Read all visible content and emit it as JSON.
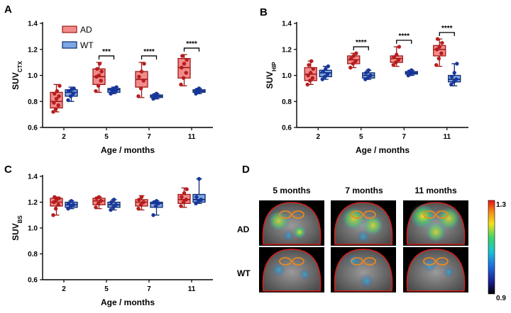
{
  "colors": {
    "ad_fill": "#f28b8b",
    "ad_edge": "#a01818",
    "ad_point": "#c01a1a",
    "wt_fill": "#7ea7e6",
    "wt_edge": "#0b2a6e",
    "wt_point": "#1238a8"
  },
  "labels": {
    "panel_a": "A",
    "panel_b": "B",
    "panel_c": "C",
    "panel_d": "D",
    "legend_ad": "AD",
    "legend_wt": "WT"
  },
  "brain_panel": {
    "columns": [
      "5 months",
      "7 months",
      "11 months"
    ],
    "rows": [
      "AD",
      "WT"
    ],
    "colorbar_max": "1.3",
    "colorbar_min": "0.9"
  },
  "chart_data": [
    {
      "id": "A",
      "type": "box",
      "ylabel_main": "SUV",
      "ylabel_sub": "CTX",
      "xlabel": "Age / months",
      "categories": [
        "2",
        "5",
        "7",
        "11"
      ],
      "ylim": [
        0.6,
        1.4
      ],
      "yticks": [
        "0.6",
        "0.8",
        "1.0",
        "1.2",
        "1.4"
      ],
      "series": [
        {
          "name": "AD",
          "stats": [
            [
              0.72,
              0.75,
              0.8,
              0.87,
              0.93
            ],
            [
              0.87,
              0.93,
              0.99,
              1.05,
              1.1
            ],
            [
              0.83,
              0.91,
              0.97,
              1.03,
              1.1
            ],
            [
              0.92,
              0.98,
              1.06,
              1.13,
              1.16
            ]
          ],
          "points": [
            [
              0.72,
              0.74,
              0.77,
              0.79,
              0.82,
              0.84,
              0.86,
              0.88,
              0.92
            ],
            [
              0.88,
              0.92,
              0.96,
              0.99,
              1.0,
              1.03,
              1.05,
              1.09
            ],
            [
              0.84,
              0.9,
              0.96,
              0.99,
              1.03,
              1.09
            ],
            [
              0.93,
              0.98,
              1.02,
              1.06,
              1.09,
              1.12,
              1.15
            ]
          ]
        },
        {
          "name": "WT",
          "stats": [
            [
              0.8,
              0.84,
              0.87,
              0.89,
              0.91
            ],
            [
              0.86,
              0.87,
              0.89,
              0.9,
              0.91
            ],
            [
              0.82,
              0.83,
              0.84,
              0.85,
              0.86
            ],
            [
              0.86,
              0.87,
              0.88,
              0.89,
              0.9
            ]
          ],
          "points": [
            [
              0.81,
              0.84,
              0.86,
              0.88,
              0.89,
              0.9
            ],
            [
              0.86,
              0.87,
              0.88,
              0.89,
              0.9,
              0.91
            ],
            [
              0.82,
              0.83,
              0.84,
              0.85,
              0.86
            ],
            [
              0.86,
              0.87,
              0.88,
              0.89,
              0.9
            ]
          ]
        }
      ],
      "significance": [
        "",
        "***",
        "****",
        "****"
      ]
    },
    {
      "id": "B",
      "type": "box",
      "ylabel_main": "SUV",
      "ylabel_sub": "HIP",
      "xlabel": "Age / months",
      "categories": [
        "2",
        "5",
        "7",
        "11"
      ],
      "ylim": [
        0.6,
        1.4
      ],
      "yticks": [
        "0.6",
        "0.8",
        "1.0",
        "1.2",
        "1.4"
      ],
      "series": [
        {
          "name": "AD",
          "stats": [
            [
              0.93,
              0.96,
              1.01,
              1.06,
              1.11
            ],
            [
              1.06,
              1.09,
              1.12,
              1.15,
              1.17
            ],
            [
              1.07,
              1.1,
              1.13,
              1.15,
              1.22
            ],
            [
              1.07,
              1.15,
              1.2,
              1.23,
              1.28
            ]
          ],
          "points": [
            [
              0.93,
              0.96,
              0.98,
              1.0,
              1.02,
              1.05,
              1.08,
              1.11
            ],
            [
              1.06,
              1.09,
              1.11,
              1.13,
              1.15,
              1.17
            ],
            [
              1.08,
              1.1,
              1.12,
              1.14,
              1.16,
              1.22
            ],
            [
              1.08,
              1.13,
              1.17,
              1.2,
              1.22,
              1.25,
              1.28
            ]
          ]
        },
        {
          "name": "WT",
          "stats": [
            [
              0.97,
              0.99,
              1.02,
              1.04,
              1.07
            ],
            [
              0.97,
              0.98,
              1.0,
              1.02,
              1.04
            ],
            [
              1.0,
              1.01,
              1.02,
              1.03,
              1.04
            ],
            [
              0.92,
              0.95,
              0.97,
              1.0,
              1.09
            ]
          ],
          "points": [
            [
              0.97,
              0.99,
              1.01,
              1.03,
              1.05,
              1.07
            ],
            [
              0.97,
              0.98,
              1.0,
              1.02,
              1.04
            ],
            [
              1.0,
              1.01,
              1.02,
              1.03,
              1.04
            ],
            [
              0.93,
              0.95,
              0.97,
              0.99,
              1.02,
              1.09
            ]
          ]
        }
      ],
      "significance": [
        "",
        "****",
        "****",
        "****"
      ]
    },
    {
      "id": "C",
      "type": "box",
      "ylabel_main": "SUV",
      "ylabel_sub": "BS",
      "xlabel": "Age / months",
      "categories": [
        "2",
        "5",
        "7",
        "11"
      ],
      "ylim": [
        0.6,
        1.4
      ],
      "yticks": [
        "0.6",
        "0.8",
        "1.0",
        "1.2",
        "1.4"
      ],
      "series": [
        {
          "name": "AD",
          "stats": [
            [
              1.1,
              1.17,
              1.2,
              1.23,
              1.24
            ],
            [
              1.15,
              1.18,
              1.21,
              1.23,
              1.24
            ],
            [
              1.14,
              1.17,
              1.2,
              1.22,
              1.25
            ],
            [
              1.16,
              1.19,
              1.22,
              1.26,
              1.31
            ]
          ],
          "points": [
            [
              1.1,
              1.15,
              1.18,
              1.2,
              1.22,
              1.23,
              1.24
            ],
            [
              1.16,
              1.19,
              1.21,
              1.23,
              1.24
            ],
            [
              1.15,
              1.18,
              1.2,
              1.22,
              1.24
            ],
            [
              1.17,
              1.2,
              1.22,
              1.24,
              1.27,
              1.3
            ]
          ]
        },
        {
          "name": "WT",
          "stats": [
            [
              1.15,
              1.16,
              1.18,
              1.2,
              1.21
            ],
            [
              1.14,
              1.16,
              1.18,
              1.2,
              1.22
            ],
            [
              1.1,
              1.16,
              1.19,
              1.2,
              1.21
            ],
            [
              1.19,
              1.2,
              1.22,
              1.26,
              1.38
            ]
          ],
          "points": [
            [
              1.15,
              1.17,
              1.18,
              1.19,
              1.21
            ],
            [
              1.14,
              1.16,
              1.18,
              1.2,
              1.22
            ],
            [
              1.1,
              1.17,
              1.19,
              1.2,
              1.21
            ],
            [
              1.19,
              1.21,
              1.22,
              1.24,
              1.38
            ]
          ]
        }
      ],
      "significance": [
        "",
        "",
        "",
        ""
      ]
    }
  ]
}
